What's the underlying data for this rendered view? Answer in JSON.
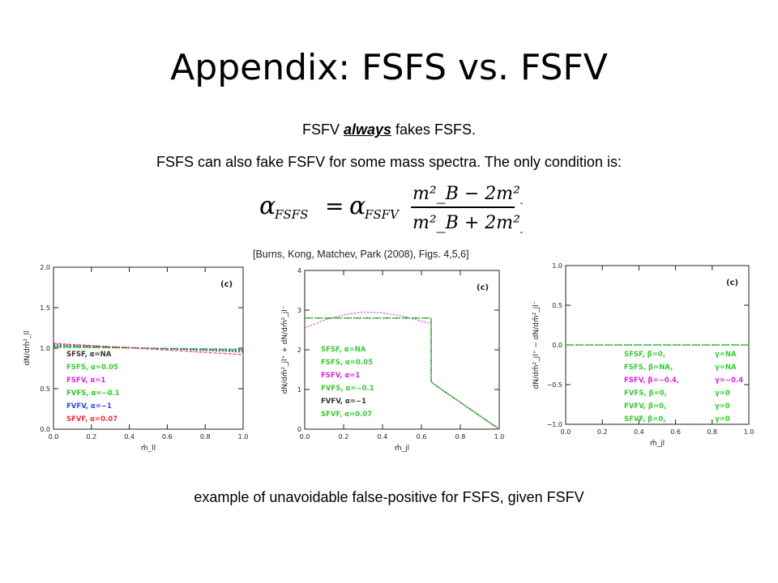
{
  "slide": {
    "title": "Appendix:  FSFS vs. FSFV",
    "line1_pre": "FSFV ",
    "line1_em": "always",
    "line1_post": " fakes FSFS.",
    "line2": "FSFS can also fake FSFV for some mass spectra.  The only condition is:",
    "citation": "[Burns, Kong, Matchev, Park (2008), Figs. 4,5,6]",
    "caption": "example of unavoidable false-positive for FSFS, given FSFV"
  },
  "equation": {
    "lhs_sym": "α",
    "lhs_sub": "FSFS",
    "eq": "=",
    "rhs_sym": "α",
    "rhs_sub": "FSFV",
    "num": "m²_B − 2m²_A",
    "den": "m²_B + 2m²_A"
  },
  "chart_data": [
    {
      "type": "line",
      "panel_label": "(c)",
      "ylabel": "dN/dm̂²_ll",
      "xlabel": "m̂_ll",
      "xlim": [
        0.0,
        1.0
      ],
      "ylim": [
        0.0,
        2.0
      ],
      "xticks": [
        "0.0",
        "0.2",
        "0.4",
        "0.6",
        "0.8",
        "1.0"
      ],
      "yticks": [
        "0.0",
        "0.5",
        "1.0",
        "1.5",
        "2.0"
      ],
      "series": [
        {
          "name": "SFSF,  α=NA",
          "color": "#333333",
          "x": [
            0,
            1
          ],
          "y": [
            1.02,
            0.98
          ]
        },
        {
          "name": "FSFS,  α=0.05",
          "color": "#33cc33",
          "x": [
            0,
            1
          ],
          "y": [
            1.03,
            0.97
          ]
        },
        {
          "name": "FSFV,  α=1",
          "color": "#dd22dd",
          "x": [
            0,
            1
          ],
          "y": [
            1.05,
            0.95
          ]
        },
        {
          "name": "FVFS,  α=−0.1",
          "color": "#22cc22",
          "x": [
            0,
            1
          ],
          "y": [
            1.01,
            0.99
          ]
        },
        {
          "name": "FVFV,  α=−1",
          "color": "#3344dd",
          "x": [
            0,
            1
          ],
          "y": [
            1.04,
            0.96
          ]
        },
        {
          "name": "SFVF,  α=0.07",
          "color": "#ee3333",
          "x": [
            0,
            1
          ],
          "y": [
            1.06,
            0.92
          ]
        }
      ]
    },
    {
      "type": "line",
      "panel_label": "(c)",
      "ylabel": "dN/dm̂²_jl⁺ + dN/dm̂²_jl⁻",
      "xlabel": "m̂_jl",
      "xlim": [
        0.0,
        1.0
      ],
      "ylim": [
        0,
        4
      ],
      "xticks": [
        "0.0",
        "0.2",
        "0.4",
        "0.6",
        "0.8",
        "1.0"
      ],
      "yticks": [
        "0",
        "1",
        "2",
        "3",
        "4"
      ],
      "series": [
        {
          "name": "SFSF,  α=NA",
          "color": "#33cc33",
          "x": [
            0,
            0.65,
            0.65,
            0.66,
            1.0
          ],
          "y": [
            2.8,
            2.8,
            1.2,
            1.15,
            0.0
          ]
        },
        {
          "name": "FSFS,  α=0.05",
          "color": "#33cc33",
          "x": [
            0,
            0.65,
            0.65,
            0.66,
            1.0
          ],
          "y": [
            2.8,
            2.8,
            1.2,
            1.15,
            0.0
          ]
        },
        {
          "name": "FSFV,  α=1",
          "color": "#dd22dd",
          "x": [
            0,
            0.1,
            0.2,
            0.3,
            0.4,
            0.5,
            0.6,
            0.65,
            0.65,
            0.66,
            1.0
          ],
          "y": [
            2.55,
            2.75,
            2.88,
            2.95,
            2.93,
            2.85,
            2.72,
            2.66,
            1.2,
            1.15,
            0.0
          ]
        },
        {
          "name": "FVFS,  α=−0.1",
          "color": "#33cc33",
          "x": [
            0,
            0.65,
            0.65,
            0.66,
            1.0
          ],
          "y": [
            2.8,
            2.8,
            1.2,
            1.15,
            0.0
          ]
        },
        {
          "name": "FVFV,  α=−1",
          "color": "#333333",
          "x": [
            0,
            0.65,
            0.65,
            0.66,
            1.0
          ],
          "y": [
            2.8,
            2.8,
            1.2,
            1.15,
            0.0
          ]
        },
        {
          "name": "SFVF,  α=0.07",
          "color": "#33cc33",
          "x": [
            0,
            0.65,
            0.65,
            0.66,
            1.0
          ],
          "y": [
            2.8,
            2.8,
            1.2,
            1.15,
            0.0
          ]
        }
      ]
    },
    {
      "type": "line",
      "panel_label": "(c)",
      "ylabel": "dN/dm̂²_jl⁺ − dN/dm̂²_jl⁻",
      "xlabel": "m̂_jl",
      "xlim": [
        0.0,
        1.0
      ],
      "ylim": [
        -1.0,
        1.0
      ],
      "xticks": [
        "0.0",
        "0.2",
        "0.4",
        "0.6",
        "0.8",
        "1.0"
      ],
      "yticks": [
        "−1.0",
        "−0.5",
        "0.0",
        "0.5",
        "1.0"
      ],
      "series": [
        {
          "name": "SFSF,  β=0,",
          "tail": "γ=NA",
          "color": "#33cc33",
          "x": [
            0,
            1
          ],
          "y": [
            0,
            0
          ]
        },
        {
          "name": "FSFS,  β=NA,",
          "tail": "γ=NA",
          "color": "#33cc33",
          "x": [
            0,
            1
          ],
          "y": [
            0,
            0
          ]
        },
        {
          "name": "FSFV,  β=−0.4,",
          "tail": "γ=−0.4",
          "color": "#dd22dd",
          "x": [
            0,
            1
          ],
          "y": [
            0,
            0
          ]
        },
        {
          "name": "FVFS,  β=0,",
          "tail": "γ=0",
          "color": "#33cc33",
          "x": [
            0,
            1
          ],
          "y": [
            0,
            0
          ]
        },
        {
          "name": "FVFV,  β=0,",
          "tail": "γ=0",
          "color": "#33cc33",
          "x": [
            0,
            1
          ],
          "y": [
            0,
            0
          ]
        },
        {
          "name": "SFVF,  β=0,",
          "tail": "γ=0",
          "color": "#33cc33",
          "x": [
            0,
            1
          ],
          "y": [
            0,
            0
          ]
        }
      ]
    }
  ]
}
